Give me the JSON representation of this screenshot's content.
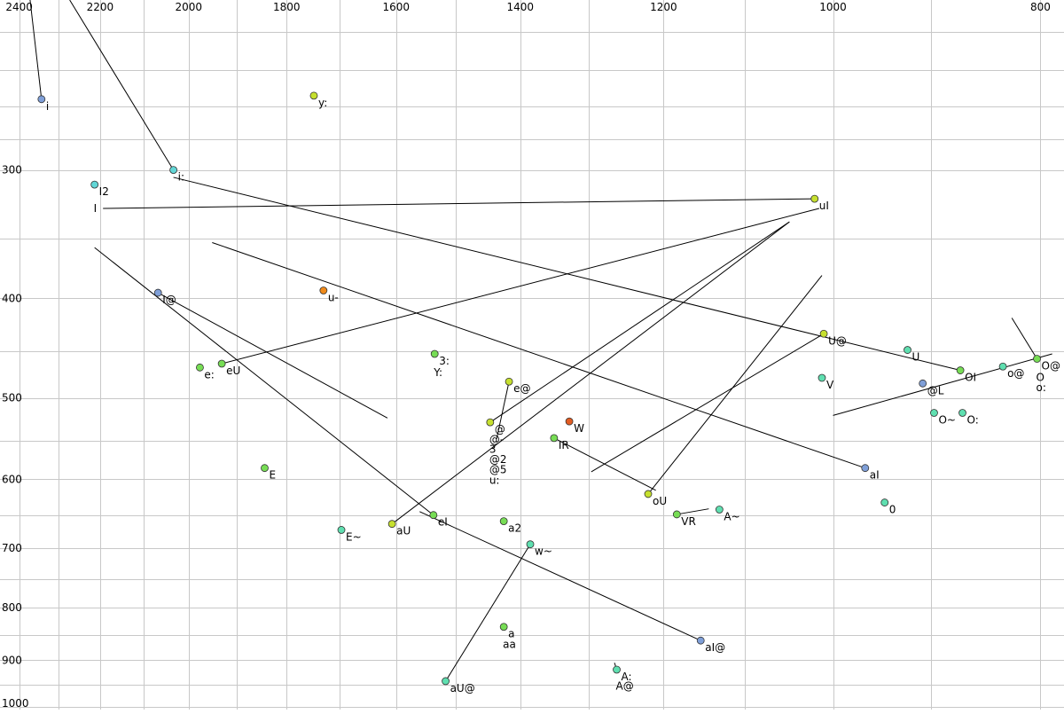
{
  "chart_data": {
    "type": "scatter",
    "title": "",
    "xlabel": "",
    "ylabel": "",
    "x_reversed": true,
    "y_reversed": true,
    "y_scale": "log",
    "x_scale": "log",
    "xlim": [
      2450,
      780
    ],
    "ylim": [
      205,
      1005
    ],
    "grid": true,
    "x_tick_labels": [
      "2400",
      "2200",
      "2000",
      "1800",
      "1600",
      "1400",
      "1200",
      "1000",
      "800"
    ],
    "y_tick_labels": [
      "300",
      "400",
      "500",
      "600",
      "700",
      "800",
      "900",
      "1000"
    ],
    "x_ticks": [
      2400,
      2200,
      2000,
      1800,
      1600,
      1400,
      1200,
      1000,
      800
    ],
    "y_ticks": [
      300,
      400,
      500,
      600,
      700,
      800,
      900,
      1000
    ],
    "x_grid": [
      2400,
      2300,
      2200,
      2100,
      2000,
      1900,
      1800,
      1700,
      1600,
      1500,
      1400,
      1300,
      1200,
      1100,
      1000,
      900,
      800
    ],
    "y_grid": [
      220,
      240,
      260,
      280,
      300,
      350,
      400,
      450,
      500,
      550,
      600,
      650,
      700,
      750,
      800,
      850,
      900,
      950,
      1000
    ],
    "colors": {
      "blue": "#7f9fd8",
      "cyan": "#62d6d6",
      "teal": "#5fdfb0",
      "green": "#77dd55",
      "lime": "#c6e02e",
      "orange": "#f08a1a",
      "redorange": "#e25c22"
    },
    "points": [
      {
        "label": "i",
        "f2": 2343,
        "f1": 256,
        "color": "blue"
      },
      {
        "label": "I2",
        "f2": 2213,
        "f1": 310,
        "color": "cyan"
      },
      {
        "label": "i:",
        "f2": 2033,
        "f1": 300,
        "color": "cyan"
      },
      {
        "label": "y:",
        "f2": 1748,
        "f1": 254,
        "color": "lime"
      },
      {
        "label": "uI",
        "f2": 1020,
        "f1": 320,
        "color": "lime"
      },
      {
        "label": "I@",
        "f2": 2067,
        "f1": 395,
        "color": "blue"
      },
      {
        "label": "u-",
        "f2": 1730,
        "f1": 393,
        "color": "orange"
      },
      {
        "label": "3:",
        "f2": 1535,
        "f1": 453,
        "color": "green"
      },
      {
        "label": "e:",
        "f2": 1976,
        "f1": 467,
        "color": "green"
      },
      {
        "label": "eU",
        "f2": 1930,
        "f1": 463,
        "color": "green"
      },
      {
        "label": "e@",
        "f2": 1417,
        "f1": 482,
        "color": "lime"
      },
      {
        "label": "@",
        "f2": 1446,
        "f1": 528,
        "color": "lime"
      },
      {
        "label": "W",
        "f2": 1328,
        "f1": 527,
        "color": "redorange"
      },
      {
        "label": "IR",
        "f2": 1350,
        "f1": 547,
        "color": "green"
      },
      {
        "label": "U@",
        "f2": 1010,
        "f1": 433,
        "color": "lime"
      },
      {
        "label": "U",
        "f2": 923,
        "f1": 449,
        "color": "teal"
      },
      {
        "label": "OI",
        "f2": 872,
        "f1": 470,
        "color": "green"
      },
      {
        "label": "o@",
        "f2": 833,
        "f1": 466,
        "color": "teal"
      },
      {
        "label": "O@",
        "f2": 803,
        "f1": 458,
        "color": "green"
      },
      {
        "label": "V",
        "f2": 1012,
        "f1": 478,
        "color": "teal"
      },
      {
        "label": "@L",
        "f2": 908,
        "f1": 484,
        "color": "blue"
      },
      {
        "label": "O~",
        "f2": 897,
        "f1": 517,
        "color": "teal"
      },
      {
        "label": "O:",
        "f2": 870,
        "f1": 517,
        "color": "teal"
      },
      {
        "label": "aI",
        "f2": 966,
        "f1": 585,
        "color": "blue"
      },
      {
        "label": "0",
        "f2": 946,
        "f1": 632,
        "color": "teal"
      },
      {
        "label": "E",
        "f2": 1843,
        "f1": 585,
        "color": "green"
      },
      {
        "label": "oU",
        "f2": 1220,
        "f1": 620,
        "color": "lime"
      },
      {
        "label": "VR",
        "f2": 1183,
        "f1": 649,
        "color": "green"
      },
      {
        "label": "A~",
        "f2": 1130,
        "f1": 642,
        "color": "teal"
      },
      {
        "label": "aU",
        "f2": 1607,
        "f1": 663,
        "color": "lime"
      },
      {
        "label": "eI",
        "f2": 1537,
        "f1": 650,
        "color": "green"
      },
      {
        "label": "a2",
        "f2": 1425,
        "f1": 659,
        "color": "green"
      },
      {
        "label": "E~",
        "f2": 1697,
        "f1": 672,
        "color": "teal"
      },
      {
        "label": "w~",
        "f2": 1385,
        "f1": 694,
        "color": "teal"
      },
      {
        "label": "a",
        "f2": 1425,
        "f1": 835,
        "color": "green"
      },
      {
        "label": "aI@",
        "f2": 1153,
        "f1": 861,
        "color": "blue"
      },
      {
        "label": "A:",
        "f2": 1262,
        "f1": 919,
        "color": "teal"
      },
      {
        "label": "aU@",
        "f2": 1517,
        "f1": 943,
        "color": "teal"
      }
    ],
    "extra_labels": [
      {
        "text": "I",
        "f2": 2213,
        "f1": 322
      },
      {
        "text": "Y:",
        "f2": 1535,
        "f1": 465
      },
      {
        "text": "@-",
        "f2": 1446,
        "f1": 540
      },
      {
        "text": "3",
        "f2": 1446,
        "f1": 552
      },
      {
        "text": "@2",
        "f2": 1446,
        "f1": 565
      },
      {
        "text": "@5",
        "f2": 1446,
        "f1": 578
      },
      {
        "text": "u:",
        "f2": 1446,
        "f1": 592
      },
      {
        "text": "O",
        "f2": 803,
        "f1": 470
      },
      {
        "text": "o:",
        "f2": 803,
        "f1": 481
      },
      {
        "text": "aa",
        "f2": 1425,
        "f1": 855
      },
      {
        "text": "A@",
        "f2": 1262,
        "f1": 938
      }
    ],
    "segments": [
      [
        [
          2372,
          205
        ],
        [
          2343,
          256
        ]
      ],
      [
        [
          2273,
          205
        ],
        [
          2033,
          300
        ]
      ],
      [
        [
          2033,
          305
        ],
        [
          872,
          470
        ]
      ],
      [
        [
          2193,
          327
        ],
        [
          1020,
          320
        ]
      ],
      [
        [
          1930,
          463
        ],
        [
          1015,
          327
        ]
      ],
      [
        [
          2213,
          357
        ],
        [
          1537,
          650
        ]
      ],
      [
        [
          2067,
          395
        ],
        [
          1615,
          523
        ]
      ],
      [
        [
          1950,
          353
        ],
        [
          966,
          585
        ]
      ],
      [
        [
          1446,
          528
        ],
        [
          1048,
          337
        ]
      ],
      [
        [
          1607,
          663
        ],
        [
          1048,
          337
        ]
      ],
      [
        [
          1220,
          620
        ],
        [
          1012,
          380
        ]
      ],
      [
        [
          1297,
          590
        ],
        [
          1010,
          433
        ]
      ],
      [
        [
          1000,
          520
        ],
        [
          790,
          453
        ]
      ],
      [
        [
          1417,
          482
        ],
        [
          1436,
          548
        ]
      ],
      [
        [
          1350,
          547
        ],
        [
          1210,
          615
        ]
      ],
      [
        [
          1183,
          649
        ],
        [
          1143,
          641
        ]
      ],
      [
        [
          1560,
          645
        ],
        [
          1153,
          861
        ]
      ],
      [
        [
          1385,
          694
        ],
        [
          1517,
          943
        ]
      ],
      [
        [
          1265,
          905
        ],
        [
          1262,
          919
        ]
      ],
      [
        [
          825,
          418
        ],
        [
          803,
          458
        ]
      ]
    ]
  }
}
